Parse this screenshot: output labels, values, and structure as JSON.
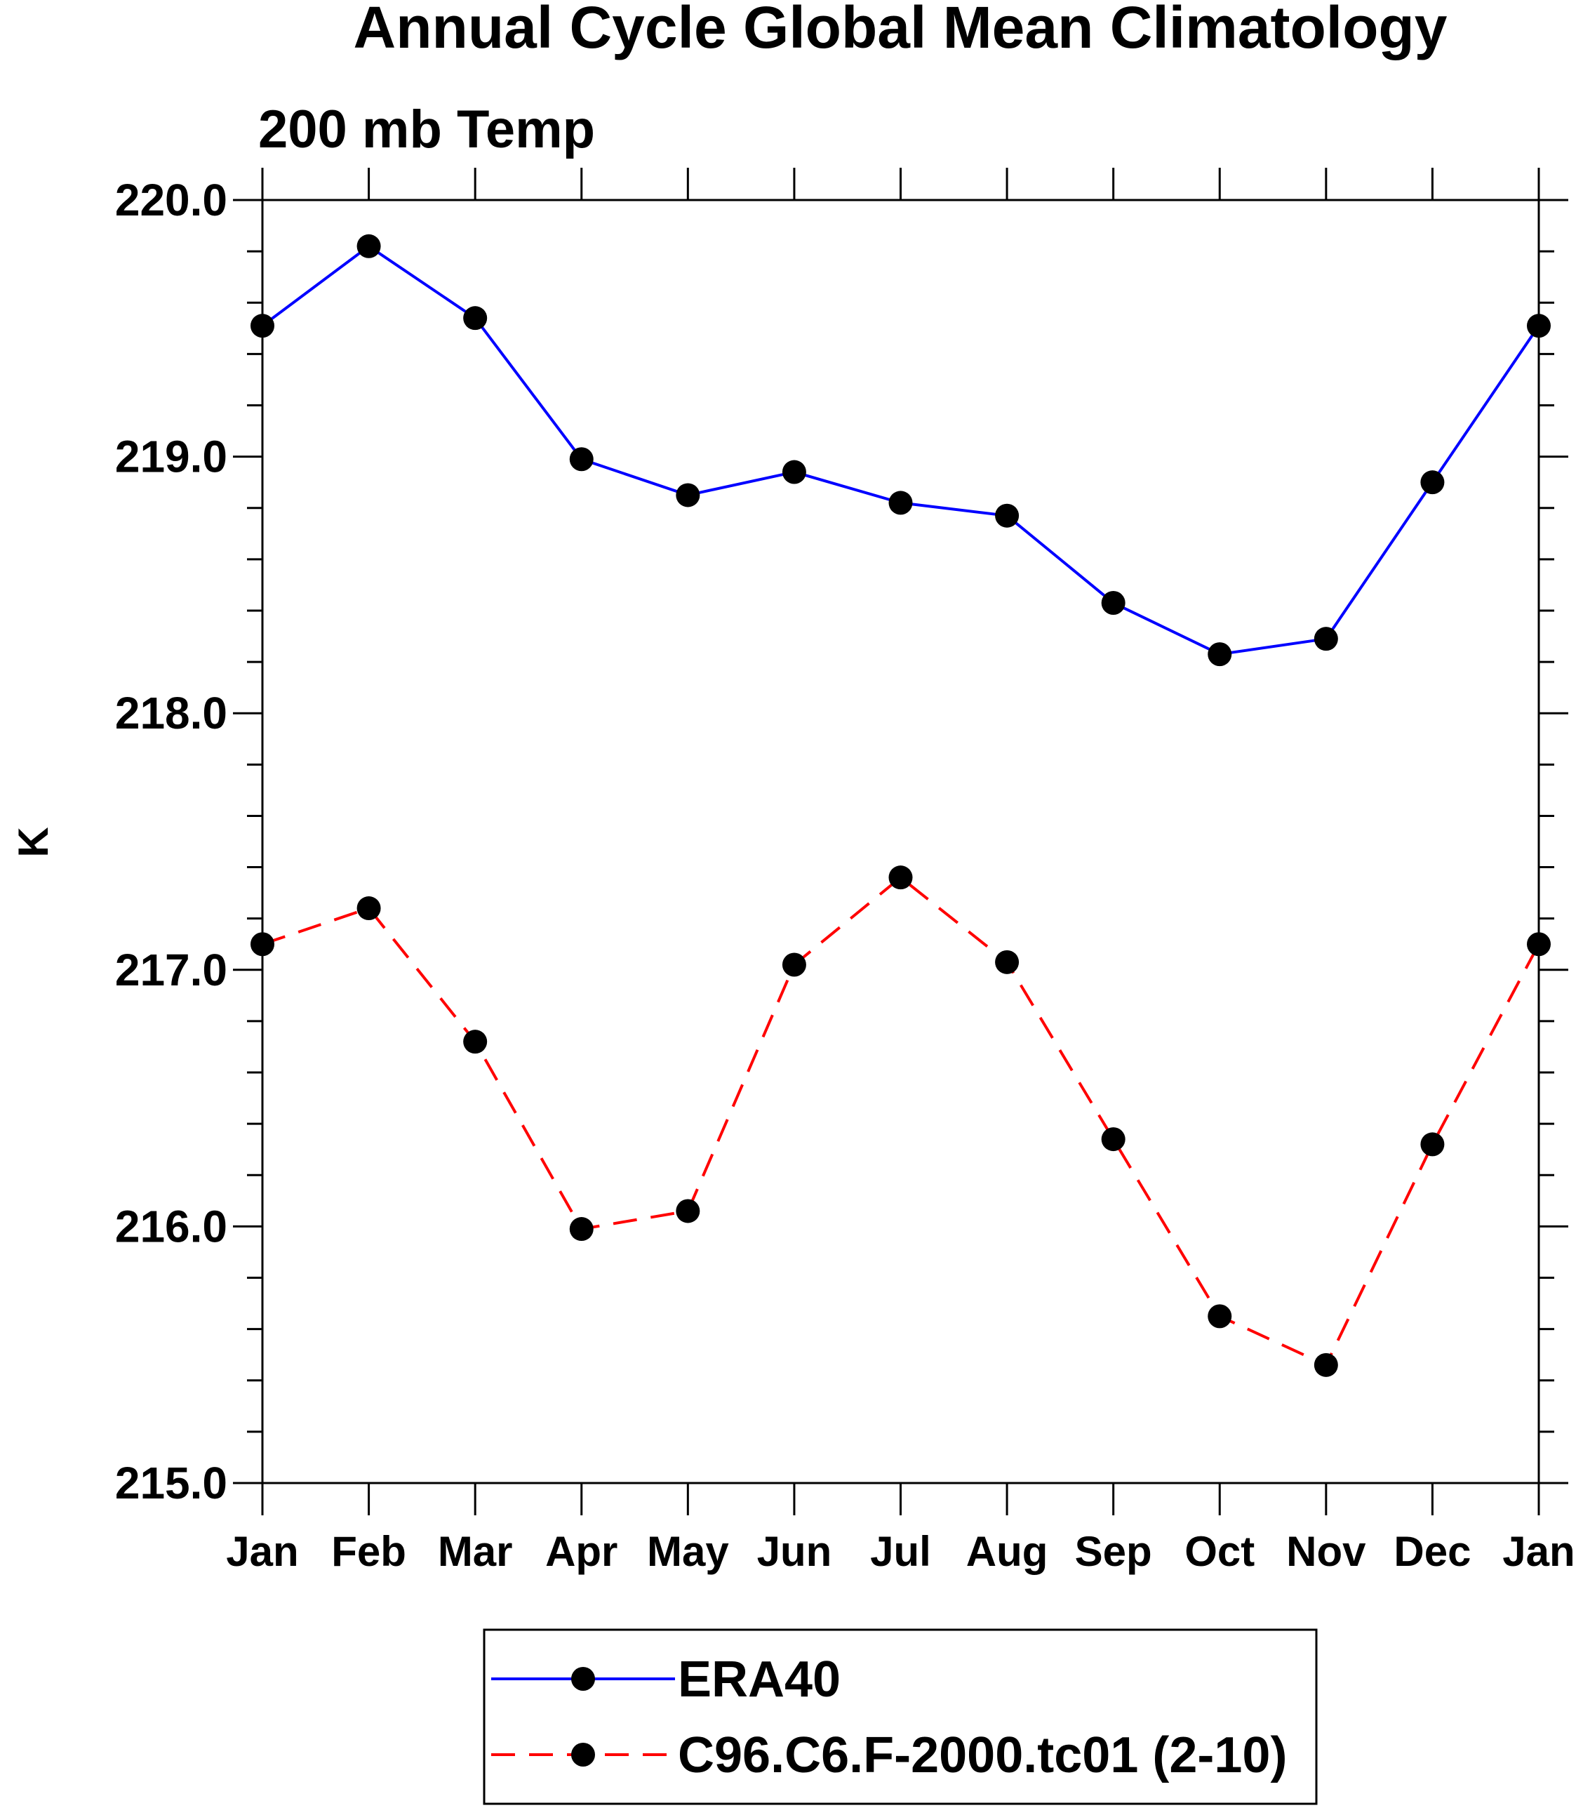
{
  "chart_data": {
    "type": "line",
    "title": "Annual Cycle Global Mean Climatology",
    "subtitle": "200 mb Temp",
    "ylabel": "K",
    "xlabel": "",
    "categories": [
      "Jan",
      "Feb",
      "Mar",
      "Apr",
      "May",
      "Jun",
      "Jul",
      "Aug",
      "Sep",
      "Oct",
      "Nov",
      "Dec",
      "Jan"
    ],
    "ylim": [
      215.0,
      220.0
    ],
    "yticks": [
      "215.0",
      "216.0",
      "217.0",
      "218.0",
      "219.0",
      "220.0"
    ],
    "y_minor_step": 0.2,
    "grid": false,
    "legend_position": "bottom",
    "series": [
      {
        "name": "ERA40",
        "color": "#0000ff",
        "line_style": "solid",
        "marker": "filled-circle",
        "values": [
          219.51,
          219.82,
          219.54,
          218.99,
          218.85,
          218.94,
          218.82,
          218.77,
          218.43,
          218.23,
          218.29,
          218.9,
          219.51
        ]
      },
      {
        "name": "C96.C6.F-2000.tc01 (2-10)",
        "color": "#ff0000",
        "line_style": "dashed",
        "marker": "filled-circle",
        "values": [
          217.1,
          217.24,
          216.72,
          215.99,
          216.06,
          217.02,
          217.36,
          217.03,
          216.34,
          215.65,
          215.46,
          216.32,
          217.1
        ]
      }
    ]
  }
}
